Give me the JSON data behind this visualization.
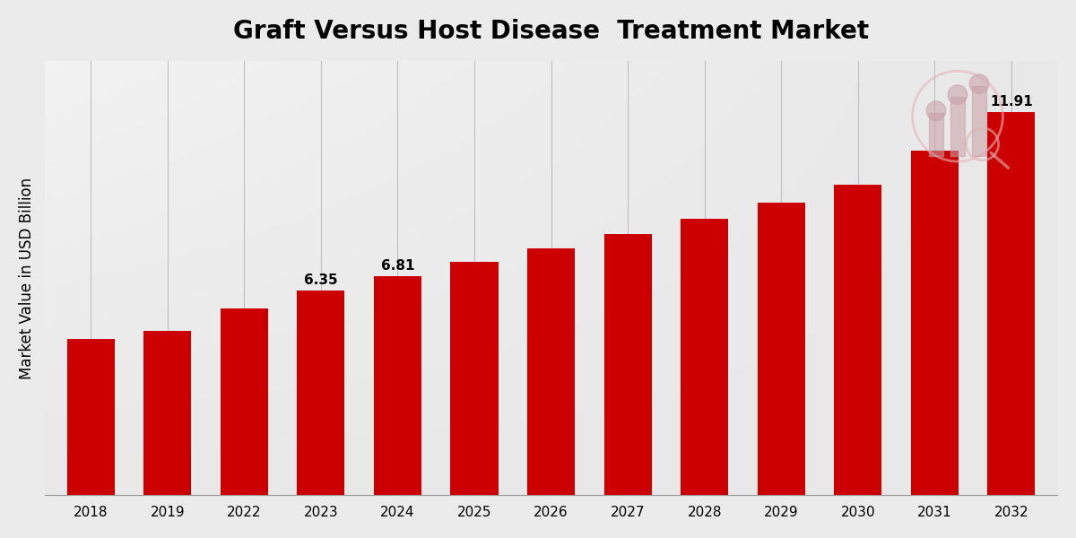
{
  "title": "Graft Versus Host Disease  Treatment Market",
  "ylabel": "Market Value in USD Billion",
  "categories": [
    "2018",
    "2019",
    "2022",
    "2023",
    "2024",
    "2025",
    "2026",
    "2027",
    "2028",
    "2029",
    "2030",
    "2031",
    "2032"
  ],
  "values": [
    4.85,
    5.1,
    5.8,
    6.35,
    6.81,
    7.25,
    7.68,
    8.12,
    8.58,
    9.1,
    9.65,
    10.72,
    11.91
  ],
  "annotations": {
    "3": "6.35",
    "4": "6.81",
    "12": "11.91"
  },
  "bar_color": "#CC0000",
  "title_fontsize": 20,
  "ylabel_fontsize": 12,
  "tick_fontsize": 11,
  "annotation_fontsize": 11,
  "ylim": [
    0,
    13.5
  ],
  "grid_color": "#BBBBBB",
  "bar_width": 0.62,
  "bg_color": "#E8E8E8",
  "fig_bg": "#EBEBEB"
}
